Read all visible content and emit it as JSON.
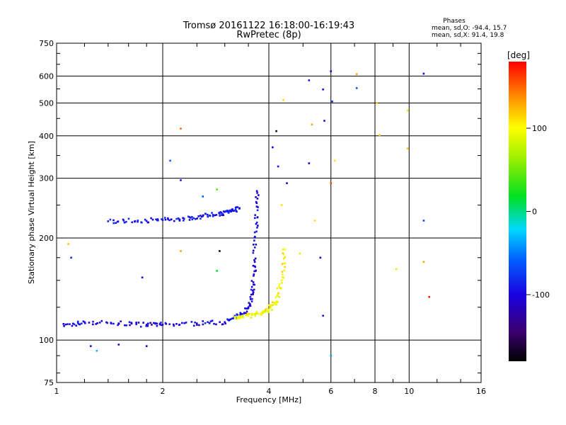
{
  "chart_data": {
    "type": "scatter",
    "title": "Tromsø 20161122 16:18:00-16:19:43",
    "subtitle": "RwPretec (8p)",
    "xlabel": "Frequency [MHz]",
    "ylabel": "Stationary phase Virtual Height [km]",
    "xscale": "log",
    "yscale": "log",
    "xlim": [
      1,
      16
    ],
    "ylim": [
      75,
      750
    ],
    "xticks": [
      1,
      2,
      4,
      6,
      8,
      10,
      16
    ],
    "xtick_labels": [
      "1",
      "2",
      "4",
      "6",
      "8",
      "10",
      "16"
    ],
    "yticks": [
      75,
      100,
      200,
      300,
      400,
      500,
      600,
      750
    ],
    "ytick_labels": [
      "75",
      "100",
      "200",
      "300",
      "400",
      "500",
      "600",
      "750"
    ],
    "grid": true,
    "phase_legend": {
      "title": "Phases",
      "line_o": "mean, sd,O: -94.4, 15.7",
      "line_x": "mean, sd,X:  91.4, 19.8"
    },
    "colorbar": {
      "label": "[deg]",
      "range": [
        -180,
        180
      ],
      "ticks": [
        100,
        0,
        -100
      ],
      "tick_labels": [
        "100",
        "0",
        "-100"
      ]
    },
    "trace_segments": [
      {
        "name": "O-mode F-layer trace",
        "phase": -100,
        "x": [
          1.05,
          1.2,
          1.5,
          1.8,
          2.0,
          2.5,
          3.0,
          3.3,
          3.5,
          3.6,
          3.65,
          3.68,
          3.7
        ],
        "y": [
          110,
          113,
          112,
          111,
          111,
          112,
          113,
          118,
          125,
          140,
          170,
          220,
          275
        ]
      },
      {
        "name": "X-mode F-layer trace",
        "phase": 100,
        "x": [
          3.2,
          3.5,
          3.8,
          4.0,
          4.2,
          4.35,
          4.45
        ],
        "y": [
          117,
          118,
          120,
          123,
          130,
          150,
          185
        ]
      },
      {
        "name": "Upper echo trace",
        "phase": -90,
        "x": [
          1.4,
          1.7,
          2.0,
          2.3,
          2.6,
          2.9,
          3.1,
          3.3
        ],
        "y": [
          224,
          225,
          226,
          228,
          232,
          236,
          240,
          244
        ]
      }
    ],
    "scattered_points": [
      {
        "x": 1.1,
        "y": 175,
        "phase": -80
      },
      {
        "x": 1.08,
        "y": 192,
        "phase": 120
      },
      {
        "x": 1.25,
        "y": 96,
        "phase": -100
      },
      {
        "x": 1.3,
        "y": 93,
        "phase": -30
      },
      {
        "x": 1.5,
        "y": 97,
        "phase": -100
      },
      {
        "x": 1.8,
        "y": 96,
        "phase": -100
      },
      {
        "x": 1.75,
        "y": 153,
        "phase": -100
      },
      {
        "x": 2.1,
        "y": 338,
        "phase": -60
      },
      {
        "x": 2.25,
        "y": 420,
        "phase": 150
      },
      {
        "x": 2.25,
        "y": 296,
        "phase": -90
      },
      {
        "x": 2.25,
        "y": 183,
        "phase": 130
      },
      {
        "x": 2.6,
        "y": 265,
        "phase": -60
      },
      {
        "x": 2.85,
        "y": 278,
        "phase": 40
      },
      {
        "x": 2.85,
        "y": 160,
        "phase": 20
      },
      {
        "x": 2.9,
        "y": 183,
        "phase": -170
      },
      {
        "x": 4.1,
        "y": 370,
        "phase": -100
      },
      {
        "x": 4.2,
        "y": 413,
        "phase": -170
      },
      {
        "x": 4.25,
        "y": 325,
        "phase": -90
      },
      {
        "x": 4.35,
        "y": 250,
        "phase": 110
      },
      {
        "x": 4.4,
        "y": 510,
        "phase": 110
      },
      {
        "x": 4.5,
        "y": 290,
        "phase": -100
      },
      {
        "x": 4.9,
        "y": 180,
        "phase": 110
      },
      {
        "x": 5.2,
        "y": 583,
        "phase": -90
      },
      {
        "x": 5.2,
        "y": 332,
        "phase": -100
      },
      {
        "x": 5.3,
        "y": 432,
        "phase": 130
      },
      {
        "x": 5.4,
        "y": 225,
        "phase": 110
      },
      {
        "x": 5.6,
        "y": 175,
        "phase": -100
      },
      {
        "x": 5.7,
        "y": 548,
        "phase": -100
      },
      {
        "x": 5.75,
        "y": 443,
        "phase": -100
      },
      {
        "x": 5.7,
        "y": 118,
        "phase": -100
      },
      {
        "x": 6.0,
        "y": 620,
        "phase": -100
      },
      {
        "x": 6.05,
        "y": 505,
        "phase": -80
      },
      {
        "x": 6.0,
        "y": 290,
        "phase": 160
      },
      {
        "x": 6.15,
        "y": 338,
        "phase": 110
      },
      {
        "x": 6.0,
        "y": 90,
        "phase": -40
      },
      {
        "x": 7.1,
        "y": 608,
        "phase": 130
      },
      {
        "x": 7.1,
        "y": 553,
        "phase": -60
      },
      {
        "x": 8.1,
        "y": 500,
        "phase": 120
      },
      {
        "x": 8.25,
        "y": 402,
        "phase": 120
      },
      {
        "x": 9.2,
        "y": 162,
        "phase": 110
      },
      {
        "x": 9.9,
        "y": 475,
        "phase": 110
      },
      {
        "x": 9.9,
        "y": 367,
        "phase": 120
      },
      {
        "x": 11.0,
        "y": 610,
        "phase": -100
      },
      {
        "x": 11.0,
        "y": 225,
        "phase": -70
      },
      {
        "x": 11.0,
        "y": 170,
        "phase": 130
      },
      {
        "x": 11.4,
        "y": 134,
        "phase": 170
      }
    ]
  }
}
